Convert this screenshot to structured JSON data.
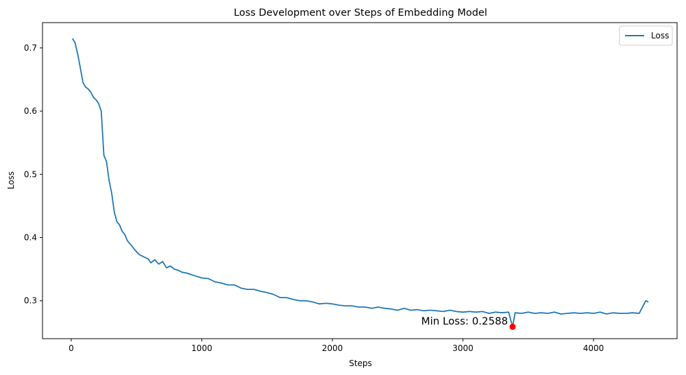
{
  "chart_data": {
    "type": "line",
    "title": "Loss Development over Steps of Embedding Model",
    "xlabel": "Steps",
    "ylabel": "Loss",
    "xlim": [
      -220,
      4640
    ],
    "ylim": [
      0.24,
      0.74
    ],
    "xticks": [
      0,
      1000,
      2000,
      3000,
      4000
    ],
    "yticks": [
      0.3,
      0.4,
      0.5,
      0.6,
      0.7
    ],
    "xtick_labels": [
      "0",
      "1000",
      "2000",
      "3000",
      "4000"
    ],
    "ytick_labels": [
      "0.3",
      "0.4",
      "0.5",
      "0.6",
      "0.7"
    ],
    "grid": false,
    "legend_position": "top-right",
    "series": [
      {
        "name": "Loss",
        "color": "#1f77b4",
        "x": [
          10,
          30,
          50,
          70,
          90,
          110,
          130,
          150,
          170,
          190,
          210,
          230,
          250,
          270,
          290,
          310,
          330,
          350,
          370,
          390,
          410,
          430,
          450,
          470,
          490,
          510,
          530,
          550,
          570,
          590,
          610,
          640,
          670,
          700,
          730,
          760,
          790,
          820,
          850,
          880,
          910,
          940,
          970,
          1000,
          1050,
          1100,
          1150,
          1200,
          1250,
          1300,
          1350,
          1400,
          1450,
          1500,
          1550,
          1600,
          1650,
          1700,
          1750,
          1800,
          1850,
          1900,
          1950,
          2000,
          2050,
          2100,
          2150,
          2200,
          2250,
          2300,
          2350,
          2400,
          2450,
          2500,
          2550,
          2600,
          2650,
          2700,
          2750,
          2800,
          2850,
          2900,
          2950,
          3000,
          3050,
          3100,
          3150,
          3200,
          3250,
          3300,
          3350,
          3380,
          3400,
          3450,
          3500,
          3550,
          3600,
          3650,
          3700,
          3750,
          3800,
          3850,
          3900,
          3950,
          4000,
          4050,
          4100,
          4150,
          4200,
          4250,
          4300,
          4350,
          4400,
          4420
        ],
        "y": [
          0.715,
          0.708,
          0.69,
          0.668,
          0.645,
          0.638,
          0.635,
          0.63,
          0.622,
          0.618,
          0.612,
          0.6,
          0.53,
          0.52,
          0.49,
          0.47,
          0.44,
          0.425,
          0.42,
          0.41,
          0.405,
          0.395,
          0.39,
          0.385,
          0.38,
          0.375,
          0.372,
          0.37,
          0.368,
          0.366,
          0.36,
          0.365,
          0.358,
          0.362,
          0.352,
          0.355,
          0.35,
          0.348,
          0.345,
          0.344,
          0.342,
          0.34,
          0.338,
          0.336,
          0.335,
          0.33,
          0.328,
          0.325,
          0.325,
          0.32,
          0.318,
          0.318,
          0.315,
          0.313,
          0.31,
          0.305,
          0.305,
          0.302,
          0.3,
          0.3,
          0.298,
          0.295,
          0.296,
          0.295,
          0.293,
          0.292,
          0.292,
          0.29,
          0.29,
          0.288,
          0.29,
          0.288,
          0.287,
          0.285,
          0.288,
          0.285,
          0.286,
          0.284,
          0.285,
          0.284,
          0.283,
          0.285,
          0.283,
          0.282,
          0.283,
          0.282,
          0.283,
          0.28,
          0.282,
          0.281,
          0.282,
          0.2588,
          0.281,
          0.28,
          0.282,
          0.28,
          0.281,
          0.28,
          0.282,
          0.279,
          0.28,
          0.281,
          0.28,
          0.281,
          0.28,
          0.282,
          0.279,
          0.281,
          0.28,
          0.28,
          0.281,
          0.28,
          0.3,
          0.298
        ]
      }
    ],
    "annotation": {
      "text": "Min Loss: 0.2588",
      "x": 3380,
      "y": 0.2588,
      "marker_color": "#ff0000"
    }
  }
}
